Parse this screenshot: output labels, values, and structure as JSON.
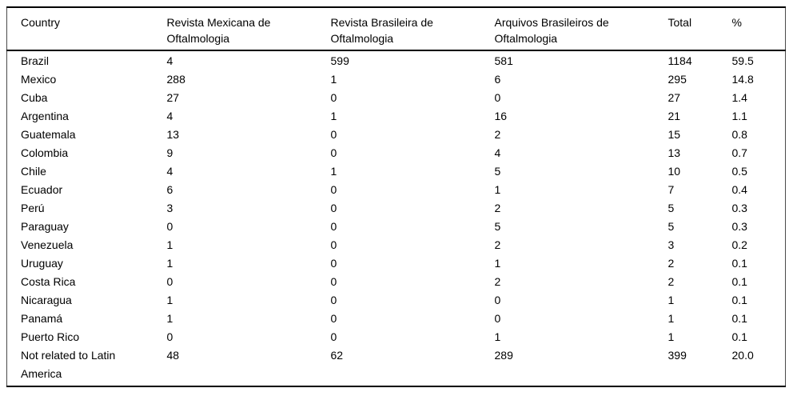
{
  "colors": {
    "background": "#ffffff",
    "text": "#000000",
    "rule": "#000000"
  },
  "table": {
    "columns": [
      {
        "label": "Country"
      },
      {
        "label": "Revista Mexicana de Oftalmologia"
      },
      {
        "label": "Revista Brasileira de Oftalmologia"
      },
      {
        "label": "Arquivos Brasileiros de Oftalmologia"
      },
      {
        "label": "Total"
      },
      {
        "label": "%"
      }
    ],
    "rows": [
      {
        "country": "Brazil",
        "values": [
          "4",
          "599",
          "581",
          "1184",
          "59.5"
        ]
      },
      {
        "country": "Mexico",
        "values": [
          "288",
          "1",
          "6",
          "295",
          "14.8"
        ]
      },
      {
        "country": "Cuba",
        "values": [
          "27",
          "0",
          "0",
          "27",
          "1.4"
        ]
      },
      {
        "country": "Argentina",
        "values": [
          "4",
          "1",
          "16",
          "21",
          "1.1"
        ]
      },
      {
        "country": "Guatemala",
        "values": [
          "13",
          "0",
          "2",
          "15",
          "0.8"
        ]
      },
      {
        "country": "Colombia",
        "values": [
          "9",
          "0",
          "4",
          "13",
          "0.7"
        ]
      },
      {
        "country": "Chile",
        "values": [
          "4",
          "1",
          "5",
          "10",
          "0.5"
        ]
      },
      {
        "country": "Ecuador",
        "values": [
          "6",
          "0",
          "1",
          "7",
          "0.4"
        ]
      },
      {
        "country": "Perú",
        "values": [
          "3",
          "0",
          "2",
          "5",
          "0.3"
        ]
      },
      {
        "country": "Paraguay",
        "values": [
          "0",
          "0",
          "5",
          "5",
          "0.3"
        ]
      },
      {
        "country": "Venezuela",
        "values": [
          "1",
          "0",
          "2",
          "3",
          "0.2"
        ]
      },
      {
        "country": "Uruguay",
        "values": [
          "1",
          "0",
          "1",
          "2",
          "0.1"
        ]
      },
      {
        "country": "Costa Rica",
        "values": [
          "0",
          "0",
          "2",
          "2",
          "0.1"
        ]
      },
      {
        "country": "Nicaragua",
        "values": [
          "1",
          "0",
          "0",
          "1",
          "0.1"
        ]
      },
      {
        "country": "Panamá",
        "values": [
          "1",
          "0",
          "0",
          "1",
          "0.1"
        ]
      },
      {
        "country": "Puerto Rico",
        "values": [
          "0",
          "0",
          "1",
          "1",
          "0.1"
        ]
      },
      {
        "country": "Not related to Latin America",
        "values": [
          "48",
          "62",
          "289",
          "399",
          "20.0"
        ]
      }
    ]
  }
}
